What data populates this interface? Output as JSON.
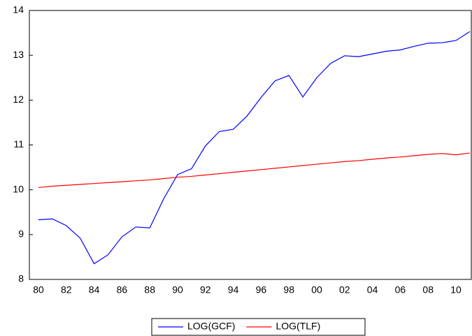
{
  "chart_data": {
    "type": "line",
    "categories": [
      "80",
      null,
      "82",
      null,
      "84",
      null,
      "86",
      null,
      "88",
      null,
      "90",
      null,
      "92",
      null,
      "94",
      null,
      "96",
      null,
      "98",
      null,
      "00",
      null,
      "02",
      null,
      "04",
      null,
      "06",
      null,
      "08",
      null,
      "10",
      null
    ],
    "series": [
      {
        "name": "LOG(GCF)",
        "color": "#0000ff",
        "values": [
          9.33,
          9.35,
          9.2,
          8.92,
          8.35,
          8.55,
          8.95,
          9.17,
          9.15,
          9.8,
          10.34,
          10.47,
          10.98,
          11.3,
          11.35,
          11.65,
          12.06,
          12.43,
          12.55,
          12.07,
          12.5,
          12.82,
          12.99,
          12.97,
          13.03,
          13.09,
          13.12,
          13.2,
          13.27,
          13.28,
          13.33,
          13.53
        ]
      },
      {
        "name": "LOG(TLF)",
        "color": "#ff0000",
        "values": [
          10.05,
          10.08,
          10.1,
          10.12,
          10.14,
          10.16,
          10.18,
          10.2,
          10.22,
          10.25,
          10.28,
          10.3,
          10.33,
          10.36,
          10.39,
          10.42,
          10.45,
          10.48,
          10.51,
          10.54,
          10.57,
          10.6,
          10.63,
          10.65,
          10.68,
          10.71,
          10.73,
          10.76,
          10.79,
          10.81,
          10.78,
          10.82
        ]
      }
    ],
    "ylim": [
      8,
      14
    ],
    "yticks": [
      8,
      9,
      10,
      11,
      12,
      13,
      14
    ],
    "grid": false,
    "legend": "bottom"
  }
}
